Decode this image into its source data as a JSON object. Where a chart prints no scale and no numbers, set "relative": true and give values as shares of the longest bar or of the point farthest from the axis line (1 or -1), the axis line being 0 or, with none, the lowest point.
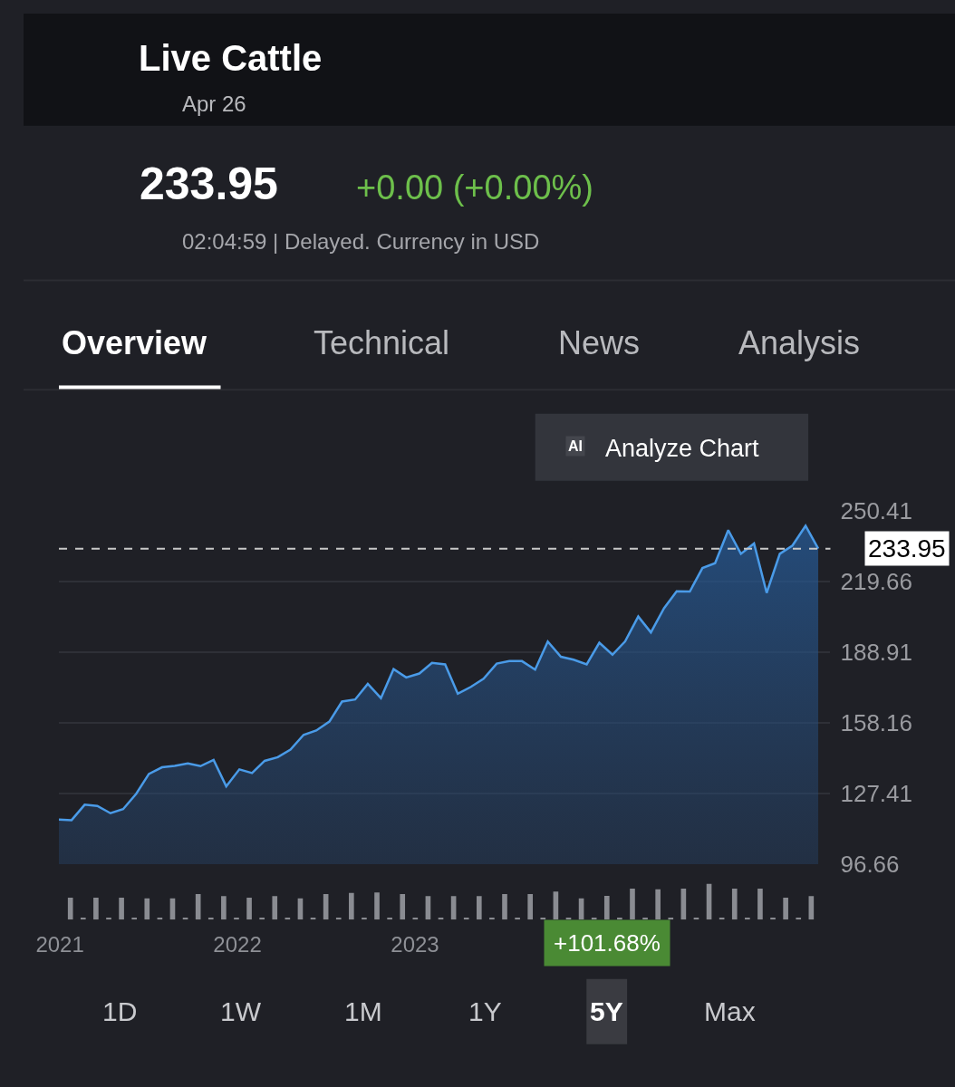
{
  "chart_data": [
    {
      "type": "area",
      "title": "Live Cattle",
      "subtitle": "Apr 26",
      "annotations": [
        "233.95",
        "+0.00 (+0.00%)",
        "02:04:59 | Delayed. Currency in USD",
        "Overview",
        "Technical",
        "News",
        "Analysis",
        "AI",
        "Analyze Chart",
        "+101.68%",
        "1D",
        "1W",
        "1M",
        "1Y",
        "5Y",
        "Max"
      ],
      "x": [
        "2020-12-30",
        "2021-01-25",
        "2021-02-21",
        "2021-03-19",
        "2021-04-15",
        "2021-05-11",
        "2021-06-07",
        "2021-07-03",
        "2021-07-30",
        "2021-08-25",
        "2021-09-21",
        "2021-10-17",
        "2021-11-13",
        "2021-12-09",
        "2022-01-05",
        "2022-01-31",
        "2022-02-26",
        "2022-03-25",
        "2022-04-20",
        "2022-05-17",
        "2022-06-12",
        "2022-07-09",
        "2022-08-04",
        "2022-08-31",
        "2022-09-26",
        "2022-10-23",
        "2022-11-18",
        "2022-12-14",
        "2023-01-10",
        "2023-02-05",
        "2023-03-04",
        "2023-03-30",
        "2023-04-26",
        "2023-05-22",
        "2023-06-18",
        "2023-07-14",
        "2023-08-09",
        "2023-09-05",
        "2023-10-01",
        "2023-10-28",
        "2023-11-23",
        "2023-12-20",
        "2024-01-15",
        "2024-02-11",
        "2024-03-08",
        "2024-04-04",
        "2024-04-30",
        "2024-05-27",
        "2024-06-22",
        "2024-07-19",
        "2024-08-14",
        "2024-09-09",
        "2024-10-06",
        "2024-11-01",
        "2024-11-28",
        "2024-12-24",
        "2025-01-20",
        "2025-02-15",
        "2025-03-14",
        "2025-04-09"
      ],
      "series": [
        {
          "color": "#4a9be8",
          "values": [
            116.0,
            115.8,
            122.5,
            122.0,
            118.8,
            120.6,
            127.3,
            135.9,
            138.8,
            139.4,
            140.5,
            139.3,
            142.0,
            130.5,
            137.9,
            136.3,
            141.6,
            143.2,
            146.5,
            152.9,
            154.8,
            158.7,
            167.4,
            168.3,
            175.1,
            168.9,
            181.5,
            177.9,
            179.6,
            184.2,
            183.6,
            170.8,
            173.8,
            177.3,
            183.9,
            185.0,
            185.0,
            181.3,
            193.5,
            186.9,
            185.6,
            183.6,
            193.0,
            187.8,
            193.6,
            204.4,
            197.5,
            208.0,
            215.4,
            215.3,
            225.5,
            227.6,
            242.0,
            231.7,
            236.2,
            214.7,
            231.7,
            235.3,
            243.9,
            234.0
          ]
        }
      ],
      "xlim": [
        "2020-12-30",
        "2025-05-04"
      ],
      "xticks": [
        {
          "value": "2021",
          "label": "2021"
        },
        {
          "value": "2022",
          "label": "2022"
        },
        {
          "value": "2023",
          "label": "2023"
        }
      ],
      "ylim": [
        96.66,
        250.41
      ],
      "yticks": [
        96.66,
        127.41,
        158.16,
        188.91,
        219.66,
        250.41
      ],
      "grid": "y",
      "ref_lines": [
        {
          "axis": "y",
          "value": 233.95,
          "label": "233.95",
          "color": "#c8c8c8",
          "line_style": "dashed"
        }
      ]
    },
    {
      "type": "bar",
      "relative": true,
      "tick_labels": false,
      "color": "#8a8c92",
      "categories": [
        null,
        null,
        null,
        null,
        null,
        null,
        null,
        null,
        null,
        null,
        null,
        null,
        null,
        null,
        null,
        null,
        null,
        null,
        null,
        null,
        null,
        null,
        null,
        null,
        null,
        null,
        null,
        null,
        null,
        null,
        null,
        null,
        null,
        null,
        null,
        null,
        null,
        null,
        null,
        null,
        null,
        null,
        null,
        null,
        null,
        null,
        null,
        null,
        null,
        null,
        null,
        null,
        null,
        null,
        null,
        null,
        null,
        null,
        null
      ],
      "values": [
        0.61,
        0.06,
        0.61,
        0.06,
        0.61,
        0.06,
        0.59,
        0.06,
        0.59,
        0.06,
        0.71,
        0.06,
        0.65,
        0.06,
        0.61,
        0.06,
        0.65,
        0.06,
        0.59,
        0.06,
        0.71,
        0.06,
        0.74,
        0.06,
        0.75,
        0.06,
        0.71,
        0.06,
        0.65,
        0.06,
        0.65,
        0.06,
        0.65,
        0.06,
        0.71,
        0.06,
        0.71,
        0.06,
        0.78,
        0.06,
        0.59,
        0.06,
        0.66,
        0.06,
        0.86,
        0.06,
        0.84,
        0.06,
        0.86,
        0.06,
        1,
        0.06,
        0.86,
        0.06,
        0.86,
        0.06,
        0.61,
        0.06,
        0.65
      ]
    }
  ]
}
